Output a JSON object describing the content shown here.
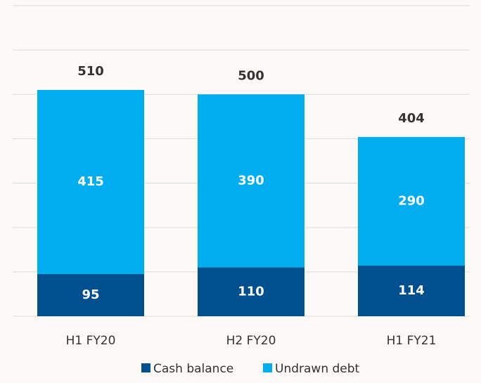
{
  "chart_data": {
    "type": "stacked_bar",
    "categories": [
      "H1 FY20",
      "H2 FY20",
      "H1 FY21"
    ],
    "series": [
      {
        "name": "Cash balance",
        "color": "#00508f",
        "values": [
          95,
          110,
          114
        ]
      },
      {
        "name": "Undrawn debt",
        "color": "#00aeef",
        "values": [
          415,
          390,
          290
        ]
      }
    ],
    "totals": [
      510,
      500,
      404
    ],
    "ylim": [
      0,
      700
    ],
    "yticks": [
      0,
      100,
      200,
      300,
      400,
      500,
      600,
      700
    ],
    "grid": true
  }
}
